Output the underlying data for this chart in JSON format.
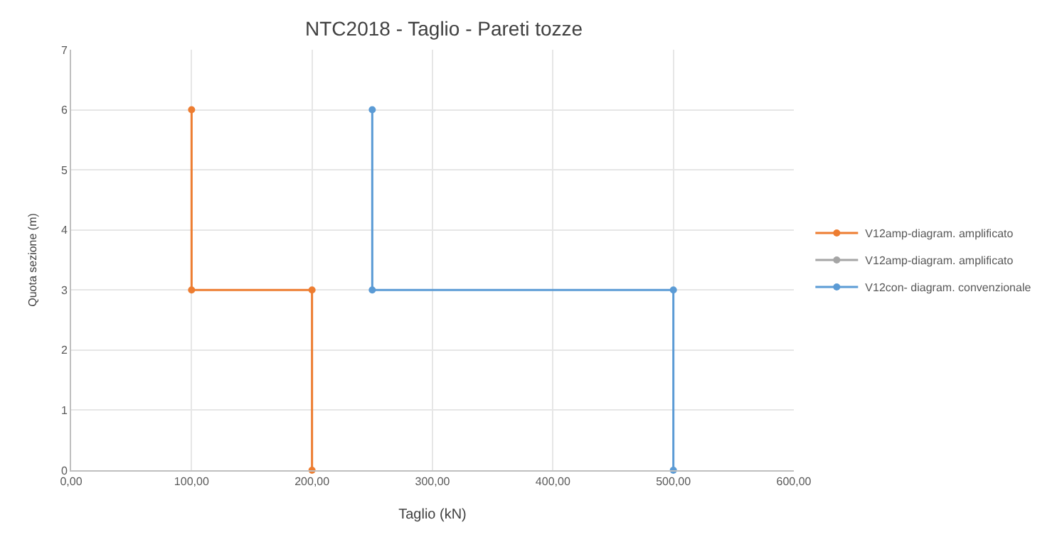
{
  "chart_data": {
    "type": "line",
    "title": "NTC2018 - Taglio - Pareti tozze",
    "xlabel": "Taglio (kN)",
    "ylabel": "Quota sezione (m)",
    "series": [
      {
        "name": "V12amp-diagram. amplificato",
        "color": "#ed7d31",
        "x": [
          100,
          100,
          200,
          200
        ],
        "values": [
          6,
          3,
          3,
          0
        ]
      },
      {
        "name": "V12amp-diagram. amplificato",
        "color": "#a5a5a5"
      },
      {
        "name": "V12con- diagram. convenzionale",
        "color": "#5b9bd5",
        "x": [
          250,
          250,
          500,
          500
        ],
        "values": [
          6,
          3,
          3,
          0
        ]
      }
    ],
    "xlim": [
      0,
      600
    ],
    "xticks": [
      {
        "value": 0,
        "label": "0,00"
      },
      {
        "value": 100,
        "label": "100,00"
      },
      {
        "value": 200,
        "label": "200,00"
      },
      {
        "value": 300,
        "label": "300,00"
      },
      {
        "value": 400,
        "label": "400,00"
      },
      {
        "value": 500,
        "label": "500,00"
      },
      {
        "value": 600,
        "label": "600,00"
      }
    ],
    "ylim": [
      0,
      7
    ],
    "yticks": [
      0,
      1,
      2,
      3,
      4,
      5,
      6,
      7
    ],
    "grid": true,
    "legend": "right",
    "marker": "circle",
    "line_style": "solid"
  }
}
